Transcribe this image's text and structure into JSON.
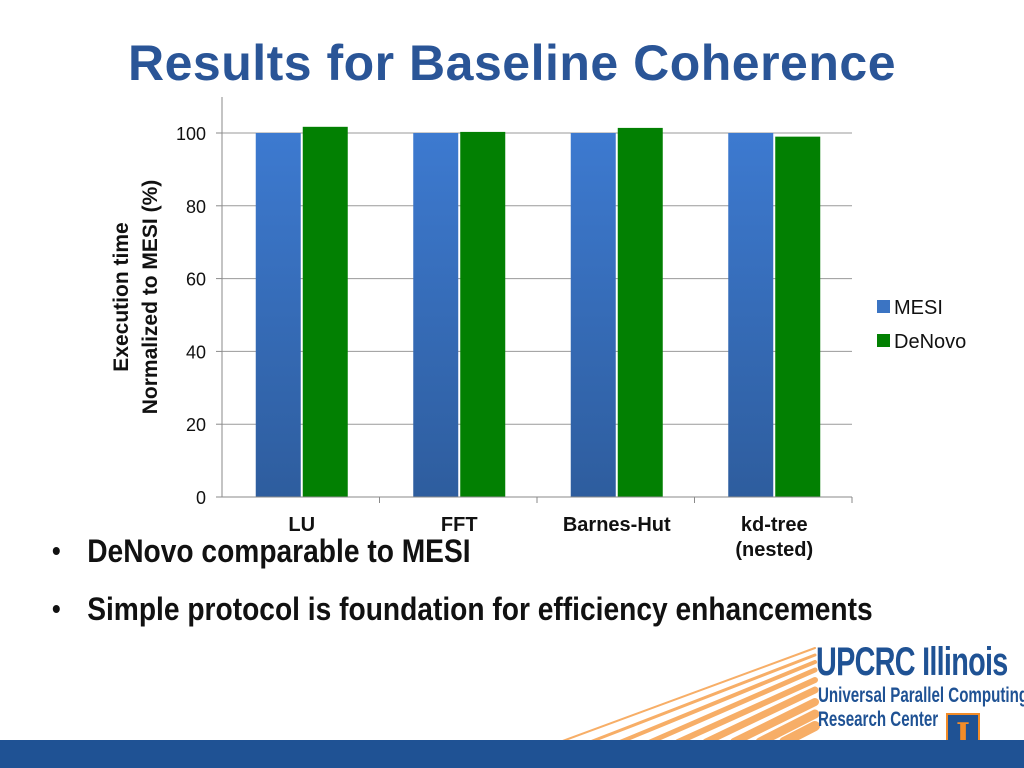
{
  "slide": {
    "title": "Results for Baseline Coherence",
    "bullets": [
      "DeNovo comparable to MESI",
      "Simple protocol is foundation for efficiency enhancements"
    ]
  },
  "logo": {
    "title": "UPCRC Illinois",
    "subtitle_line1": "Universal Parallel Computing",
    "subtitle_line2": "Research Center",
    "emblem": "I",
    "emblem_icon": "illinois-block-i-icon",
    "colors": {
      "blue": "#1f5294",
      "orange": "#f28c28"
    }
  },
  "chart_data": {
    "type": "bar",
    "categories": [
      [
        "LU"
      ],
      [
        "FFT"
      ],
      [
        "Barnes-Hut"
      ],
      [
        "kd-tree",
        "(nested)"
      ]
    ],
    "series": [
      {
        "name": "MESI",
        "values": [
          100,
          100,
          100,
          100
        ],
        "color": "#3b74c3"
      },
      {
        "name": "DeNovo",
        "values": [
          101.7,
          100.3,
          101.4,
          99.0
        ],
        "color": "#028002"
      }
    ],
    "ylabel_lines": [
      "Execution time",
      "Normalized to MESI (%)"
    ],
    "ylim": [
      0,
      100
    ],
    "yticks": [
      0,
      20,
      40,
      60,
      80,
      100
    ],
    "grid": true,
    "legend": "right"
  }
}
